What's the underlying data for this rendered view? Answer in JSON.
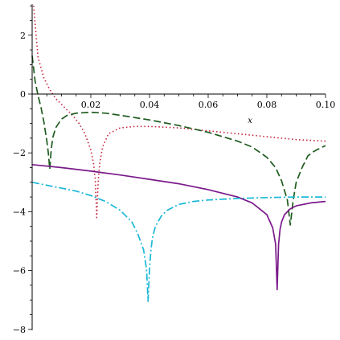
{
  "chart_data": {
    "type": "line",
    "xlabel": "x",
    "ylabel": "",
    "xlim": [
      0,
      0.1
    ],
    "ylim": [
      -8,
      3
    ],
    "x_ticks": [
      0.02,
      0.04,
      0.06,
      0.08,
      0.1
    ],
    "x_tick_labels": [
      "0.02",
      "0.04",
      "0.06",
      "0.08",
      "0.10"
    ],
    "y_ticks": [
      2,
      0,
      -2,
      -4,
      -6,
      -8
    ],
    "y_tick_labels": [
      "2",
      "0",
      "−2",
      "−4",
      "−6",
      "−8"
    ],
    "grid": false,
    "series": [
      {
        "style": "dotted",
        "color": "#c0203a",
        "x": [
          0.0005,
          0.002,
          0.004,
          0.006,
          0.008,
          0.01,
          0.012,
          0.014,
          0.016,
          0.018,
          0.02,
          0.021,
          0.0215,
          0.022,
          0.0225,
          0.023,
          0.024,
          0.026,
          0.03,
          0.035,
          0.04,
          0.05,
          0.06,
          0.07,
          0.08,
          0.09,
          0.1
        ],
        "y": [
          3.0,
          1.25,
          0.55,
          0.15,
          -0.15,
          -0.35,
          -0.55,
          -0.75,
          -1.0,
          -1.35,
          -1.9,
          -2.4,
          -2.9,
          -4.2,
          -3.0,
          -2.4,
          -1.8,
          -1.35,
          -1.15,
          -1.1,
          -1.1,
          -1.15,
          -1.25,
          -1.35,
          -1.45,
          -1.55,
          -1.6
        ]
      },
      {
        "style": "dashed",
        "color": "#1e5c1e",
        "x": [
          0.0,
          0.001,
          0.002,
          0.003,
          0.004,
          0.005,
          0.0055,
          0.006,
          0.0065,
          0.007,
          0.008,
          0.01,
          0.012,
          0.015,
          0.02,
          0.025,
          0.03,
          0.04,
          0.05,
          0.06,
          0.07,
          0.075,
          0.08,
          0.083,
          0.085,
          0.087,
          0.088,
          0.089,
          0.09,
          0.092,
          0.094,
          0.096,
          0.098,
          0.1
        ],
        "y": [
          1.3,
          0.45,
          -0.05,
          -0.45,
          -0.95,
          -1.6,
          -2.0,
          -2.55,
          -1.9,
          -1.5,
          -1.15,
          -0.85,
          -0.72,
          -0.65,
          -0.62,
          -0.65,
          -0.72,
          -0.88,
          -1.07,
          -1.3,
          -1.6,
          -1.8,
          -2.15,
          -2.5,
          -2.95,
          -3.6,
          -4.45,
          -3.6,
          -3.0,
          -2.5,
          -2.1,
          -1.95,
          -1.85,
          -1.75
        ]
      },
      {
        "style": "solid",
        "color": "#7a1a8a",
        "x": [
          0.0,
          0.01,
          0.02,
          0.03,
          0.04,
          0.05,
          0.06,
          0.07,
          0.075,
          0.08,
          0.082,
          0.083,
          0.0835,
          0.084,
          0.0845,
          0.085,
          0.086,
          0.088,
          0.09,
          0.095,
          0.1
        ],
        "y": [
          -2.4,
          -2.5,
          -2.62,
          -2.75,
          -2.9,
          -3.05,
          -3.25,
          -3.5,
          -3.7,
          -4.1,
          -4.55,
          -5.1,
          -6.65,
          -5.1,
          -4.6,
          -4.35,
          -4.1,
          -3.9,
          -3.8,
          -3.7,
          -3.65
        ]
      },
      {
        "style": "dashdot",
        "color": "#1ab8d8",
        "x": [
          0.0,
          0.005,
          0.01,
          0.015,
          0.02,
          0.025,
          0.03,
          0.034,
          0.036,
          0.038,
          0.039,
          0.0395,
          0.04,
          0.0405,
          0.041,
          0.042,
          0.044,
          0.046,
          0.05,
          0.055,
          0.06,
          0.07,
          0.08,
          0.09,
          0.1
        ],
        "y": [
          -3.0,
          -3.1,
          -3.2,
          -3.3,
          -3.45,
          -3.65,
          -3.95,
          -4.35,
          -4.75,
          -5.3,
          -5.95,
          -7.05,
          -5.95,
          -5.3,
          -4.9,
          -4.5,
          -4.15,
          -3.95,
          -3.75,
          -3.65,
          -3.6,
          -3.55,
          -3.52,
          -3.5,
          -3.5
        ]
      }
    ]
  }
}
